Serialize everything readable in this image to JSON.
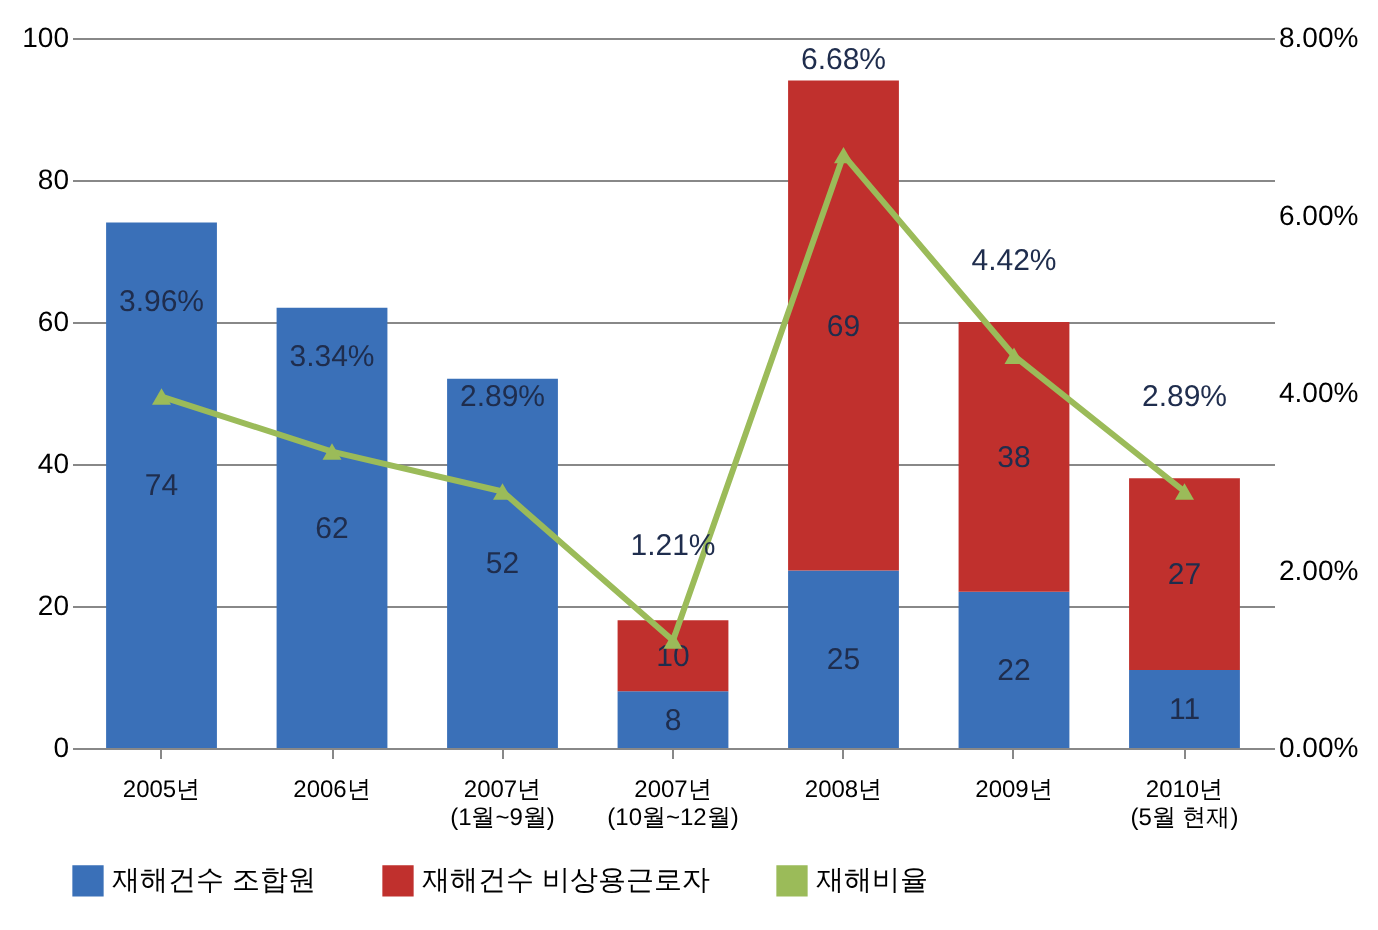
{
  "chart_data": {
    "type": "bar",
    "stacked": true,
    "categories": [
      "2005년",
      "2006년",
      "2007년\n(1월~9월)",
      "2007년\n(10월~12월)",
      "2008년",
      "2009년",
      "2010년\n(5월 현재)"
    ],
    "series": [
      {
        "name": "재해건수 조합원",
        "color": "#3a70b8",
        "values": [
          74,
          62,
          52,
          8,
          25,
          22,
          11
        ],
        "value_labels": [
          "74",
          "62",
          "52",
          "8",
          "25",
          "22",
          "11"
        ]
      },
      {
        "name": "재해건수 비상용근로자",
        "color": "#c0302d",
        "values": [
          null,
          null,
          null,
          10,
          69,
          38,
          27
        ],
        "value_labels": [
          null,
          null,
          null,
          "10",
          "69",
          "38",
          "27"
        ]
      },
      {
        "name": "재해비율",
        "color": "#9bbb59",
        "type": "line",
        "axis": "y2",
        "marker": "triangle",
        "values": [
          3.96,
          3.34,
          2.89,
          1.21,
          6.68,
          4.42,
          2.89
        ],
        "value_labels": [
          "3.96%",
          "3.34%",
          "2.89%",
          "1.21%",
          "6.68%",
          "4.42%",
          "2.89%"
        ]
      }
    ],
    "ylim": [
      0,
      100
    ],
    "yticks": [
      0,
      20,
      40,
      60,
      80,
      100
    ],
    "y2lim": [
      0,
      8
    ],
    "y2ticks": [
      {
        "value": 0,
        "label": "0.00%"
      },
      {
        "value": 2,
        "label": "2.00%"
      },
      {
        "value": 4,
        "label": "4.00%"
      },
      {
        "value": 6,
        "label": "6.00%"
      },
      {
        "value": 8,
        "label": "8.00%"
      }
    ],
    "grid": "y",
    "legend": "bottom"
  }
}
